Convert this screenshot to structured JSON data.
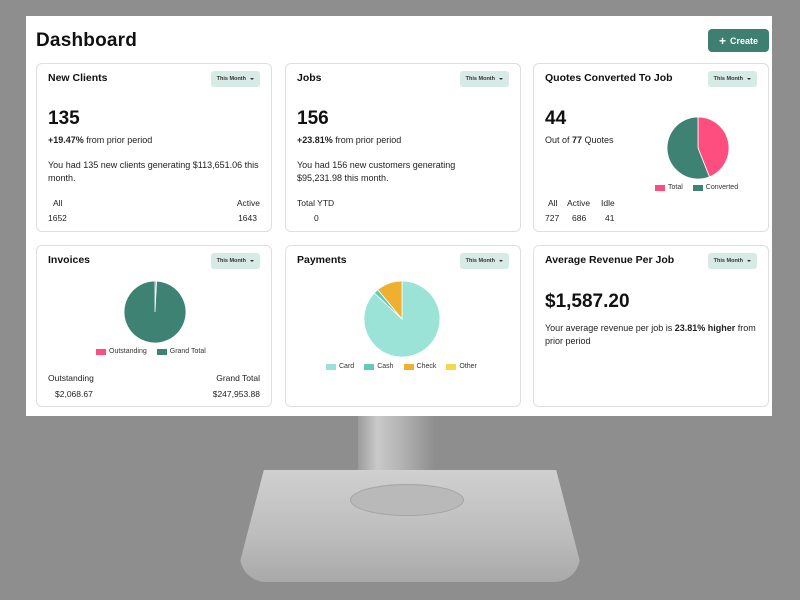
{
  "page": {
    "title": "Dashboard",
    "create_label": "Create"
  },
  "colors": {
    "accent": "#3f7f72",
    "teal": "#3d8273",
    "pink": "#fe4e7f",
    "mint": "#9ae3d6",
    "cash": "#5fcbb8",
    "check": "#f0b02f",
    "other": "#f3d84c"
  },
  "cards": {
    "new_clients": {
      "title": "New Clients",
      "period": "This Month",
      "value": "135",
      "change": "+19.47%",
      "change_suffix": " from prior period",
      "desc": "You had 135 new clients generating $113,651.06 this month.",
      "stats": {
        "all_label": "All",
        "all_value": "1652",
        "active_label": "Active",
        "active_value": "1643"
      }
    },
    "jobs": {
      "title": "Jobs",
      "period": "This Month",
      "value": "156",
      "change": "+23.81%",
      "change_suffix": " from prior period",
      "desc": "You had 156 new customers generating $95,231.98 this month.",
      "stats": {
        "ytd_label": "Total YTD",
        "ytd_value": "0"
      }
    },
    "quotes": {
      "title": "Quotes Converted To Job",
      "period": "This Month",
      "value": "44",
      "sub_prefix": "Out of ",
      "sub_count": "77",
      "sub_suffix": " Quotes",
      "stats": {
        "all_label": "All",
        "all_value": "727",
        "active_label": "Active",
        "active_value": "686",
        "idle_label": "Idle",
        "idle_value": "41"
      },
      "legend": [
        "Total",
        "Converted"
      ]
    },
    "invoices": {
      "title": "Invoices",
      "period": "This Month",
      "legend": [
        "Outstanding",
        "Grand Total"
      ],
      "stats": {
        "outstanding_label": "Outstanding",
        "outstanding_value": "$2,068.67",
        "grand_label": "Grand Total",
        "grand_value": "$247,953.88"
      }
    },
    "payments": {
      "title": "Payments",
      "period": "This Month",
      "legend": [
        "Card",
        "Cash",
        "Check",
        "Other"
      ]
    },
    "avg_revenue": {
      "title": "Average Revenue Per Job",
      "period": "This Month",
      "value": "$1,587.20",
      "desc_prefix": "Your average revenue per job is ",
      "desc_bold": "23.81% higher",
      "desc_suffix": " from prior period"
    }
  },
  "chart_data": [
    {
      "type": "pie",
      "categories": [
        "Total",
        "Converted"
      ],
      "values": [
        44,
        56
      ],
      "colors": [
        "#fe4e7f",
        "#3d8273"
      ]
    },
    {
      "type": "pie",
      "categories": [
        "Outstanding",
        "Grand Total"
      ],
      "values": [
        2068.67,
        247953.88
      ],
      "colors": [
        "#fe4e7f",
        "#3d8273"
      ]
    },
    {
      "type": "pie",
      "categories": [
        "Card",
        "Cash",
        "Check",
        "Other"
      ],
      "values": [
        87,
        2,
        11,
        0
      ],
      "colors": [
        "#9ae3d6",
        "#5fcbb8",
        "#f0b02f",
        "#f3d84c"
      ]
    }
  ]
}
